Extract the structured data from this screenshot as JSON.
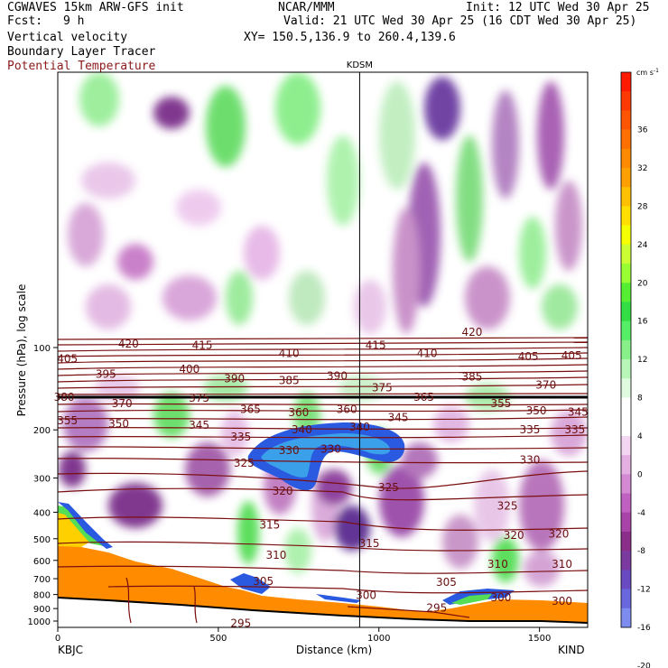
{
  "header": {
    "model": "CGWAVES 15km ARW-GFS init",
    "org": "NCAR/MMM",
    "init": "Init: 12 UTC Wed 30 Apr 25",
    "fcst_label": "Fcst:",
    "fcst_value": "9 h",
    "valid": "Valid: 21 UTC Wed 30 Apr 25 (16 CDT Wed 30 Apr 25)",
    "field1": "Vertical velocity",
    "field2": "Boundary Layer Tracer",
    "field3": "Potential Temperature",
    "xy": "XY= 150.5,136.9 to 260.4,139.6"
  },
  "chart_data": {
    "type": "heatmap",
    "marker_label": "KDSM",
    "marker_x": 940,
    "xlabel": "Distance (km)",
    "ylabel": "Pressure (hPa), log scale",
    "xlim": [
      0,
      1650
    ],
    "x_ticks": [
      "0",
      "500",
      "1000",
      "1500"
    ],
    "x_tick_values": [
      0,
      500,
      1000,
      1500
    ],
    "left_station": "KBJC",
    "right_station": "KIND",
    "y_ticks": [
      "100",
      "200",
      "300",
      "400",
      "500",
      "600",
      "700",
      "800",
      "900",
      "1000"
    ],
    "y_tick_values": [
      100,
      200,
      300,
      400,
      500,
      600,
      700,
      800,
      900,
      1000
    ],
    "colorbar": {
      "units": "cm s",
      "units_exp": "-1",
      "labels": [
        "36",
        "32",
        "28",
        "24",
        "20",
        "16",
        "12",
        "8",
        "4",
        "0",
        "-4",
        "-8",
        "-12",
        "-16",
        "-20"
      ],
      "colors": [
        "#ff1a00",
        "#ff3a00",
        "#ff5500",
        "#ff7000",
        "#ff8a00",
        "#ffa000",
        "#ffc000",
        "#ffe000",
        "#f5ff00",
        "#ccff33",
        "#99ff33",
        "#55ee33",
        "#33dd44",
        "#55ee66",
        "#88f088",
        "#b8f5b8",
        "#e0fae0",
        "#ffffff",
        "#ffffff",
        "#f2d6f2",
        "#e4b0e4",
        "#d38ad3",
        "#c060c0",
        "#a843a8",
        "#8a2e8a",
        "#7a3aa0",
        "#6a4ac0",
        "#6a66dd",
        "#7f8cef"
      ]
    },
    "theta_contours": [
      {
        "label": "420",
        "x": 1290,
        "p": 88
      },
      {
        "label": "420",
        "x": 220,
        "p": 97
      },
      {
        "label": "415",
        "x": 450,
        "p": 98
      },
      {
        "label": "415",
        "x": 990,
        "p": 98
      },
      {
        "label": "410",
        "x": 720,
        "p": 105
      },
      {
        "label": "410",
        "x": 1150,
        "p": 105
      },
      {
        "label": "405",
        "x": 30,
        "p": 110
      },
      {
        "label": "405",
        "x": 1465,
        "p": 108
      },
      {
        "label": "405",
        "x": 1600,
        "p": 107
      },
      {
        "label": "400",
        "x": 410,
        "p": 120
      },
      {
        "label": "395",
        "x": 150,
        "p": 125
      },
      {
        "label": "390",
        "x": 550,
        "p": 130
      },
      {
        "label": "385",
        "x": 720,
        "p": 132
      },
      {
        "label": "390",
        "x": 870,
        "p": 127
      },
      {
        "label": "385",
        "x": 1290,
        "p": 128
      },
      {
        "label": "370",
        "x": 1520,
        "p": 137
      },
      {
        "label": "375",
        "x": 1010,
        "p": 140
      },
      {
        "label": "380",
        "x": 20,
        "p": 152
      },
      {
        "label": "370",
        "x": 200,
        "p": 160
      },
      {
        "label": "375",
        "x": 440,
        "p": 153
      },
      {
        "label": "365",
        "x": 1140,
        "p": 152
      },
      {
        "label": "355",
        "x": 1380,
        "p": 160
      },
      {
        "label": "365",
        "x": 600,
        "p": 168
      },
      {
        "label": "360",
        "x": 750,
        "p": 173
      },
      {
        "label": "360",
        "x": 900,
        "p": 168
      },
      {
        "label": "350",
        "x": 1490,
        "p": 170
      },
      {
        "label": "345",
        "x": 1620,
        "p": 172
      },
      {
        "label": "345",
        "x": 1060,
        "p": 180
      },
      {
        "label": "355",
        "x": 30,
        "p": 185
      },
      {
        "label": "350",
        "x": 190,
        "p": 190
      },
      {
        "label": "345",
        "x": 440,
        "p": 192
      },
      {
        "label": "340",
        "x": 940,
        "p": 195
      },
      {
        "label": "340",
        "x": 760,
        "p": 200
      },
      {
        "label": "335",
        "x": 1470,
        "p": 200
      },
      {
        "label": "335",
        "x": 1610,
        "p": 200
      },
      {
        "label": "335",
        "x": 570,
        "p": 212
      },
      {
        "label": "330",
        "x": 720,
        "p": 238
      },
      {
        "label": "330",
        "x": 850,
        "p": 235
      },
      {
        "label": "330",
        "x": 1470,
        "p": 258
      },
      {
        "label": "325",
        "x": 580,
        "p": 265
      },
      {
        "label": "325",
        "x": 1030,
        "p": 325
      },
      {
        "label": "325",
        "x": 1400,
        "p": 380
      },
      {
        "label": "320",
        "x": 700,
        "p": 335
      },
      {
        "label": "320",
        "x": 1420,
        "p": 485
      },
      {
        "label": "320",
        "x": 1560,
        "p": 480
      },
      {
        "label": "315",
        "x": 660,
        "p": 445
      },
      {
        "label": "315",
        "x": 970,
        "p": 520
      },
      {
        "label": "310",
        "x": 680,
        "p": 575
      },
      {
        "label": "310",
        "x": 1370,
        "p": 620
      },
      {
        "label": "310",
        "x": 1570,
        "p": 620
      },
      {
        "label": "305",
        "x": 640,
        "p": 715
      },
      {
        "label": "305",
        "x": 1210,
        "p": 720
      },
      {
        "label": "300",
        "x": 960,
        "p": 805
      },
      {
        "label": "300",
        "x": 1380,
        "p": 820
      },
      {
        "label": "300",
        "x": 1570,
        "p": 845
      },
      {
        "label": "295",
        "x": 1180,
        "p": 895
      },
      {
        "label": "295",
        "x": 570,
        "p": 1020
      }
    ]
  }
}
